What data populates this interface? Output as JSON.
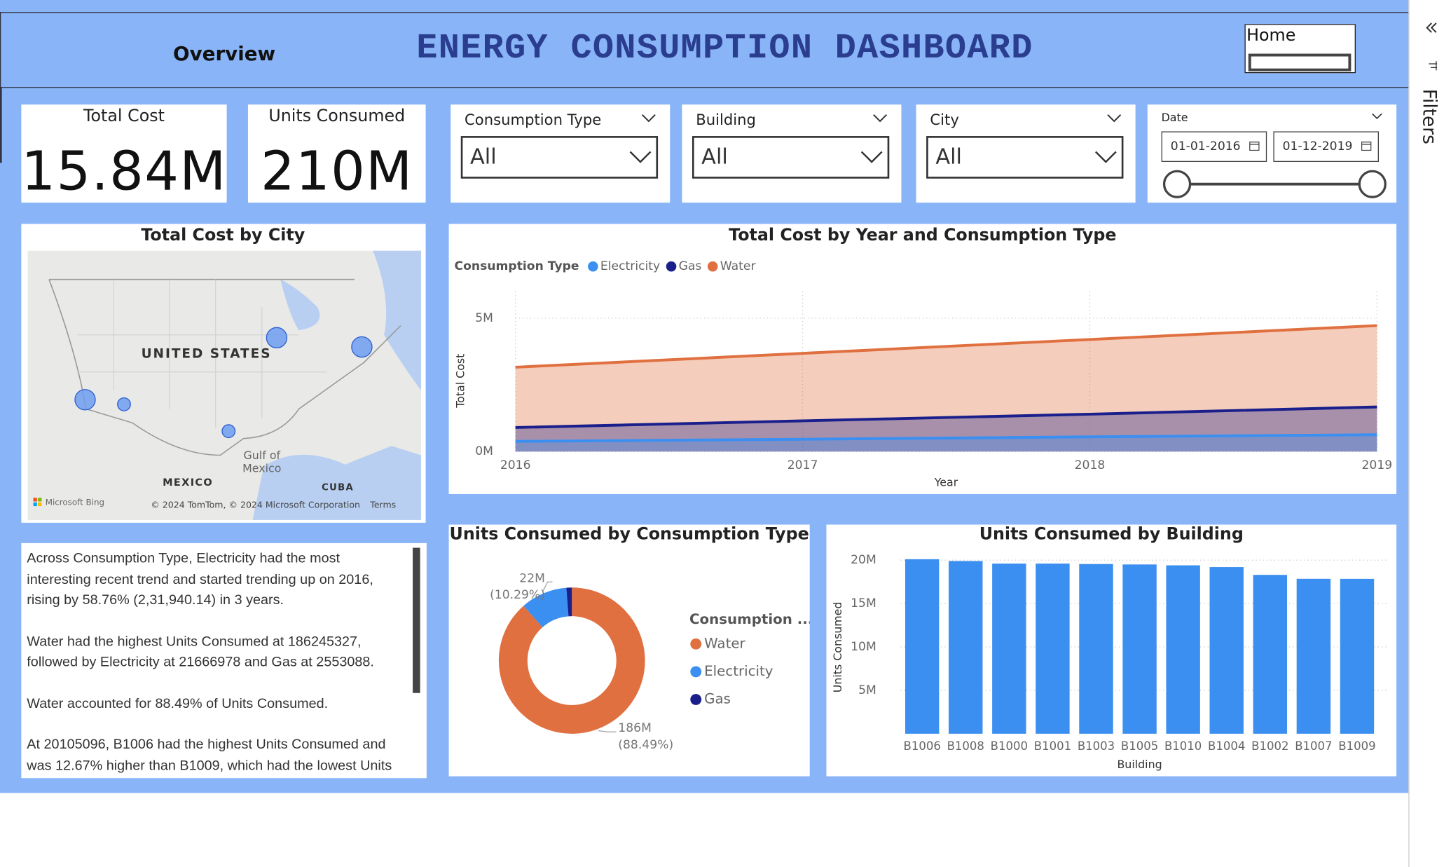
{
  "header": {
    "nav": "Overview",
    "title": "ENERGY CONSUMPTION DASHBOARD",
    "button": "Home"
  },
  "kpis": [
    {
      "label": "Total Cost",
      "value": "15.84M"
    },
    {
      "label": "Units Consumed",
      "value": "210M"
    }
  ],
  "slicers": [
    {
      "label": "Consumption Type",
      "value": "All"
    },
    {
      "label": "Building",
      "value": "All"
    },
    {
      "label": "City",
      "value": "All"
    }
  ],
  "date_slicer": {
    "label": "Date",
    "start": "01-01-2016",
    "end": "01-12-2019"
  },
  "filters_pane": {
    "label": "Filters"
  },
  "map": {
    "title": "Total Cost by City",
    "labels": [
      "UNITED STATES",
      "Gulf of Mexico",
      "MEXICO",
      "CUBA"
    ],
    "brand": "Microsoft Bing",
    "attribution": "© 2024 TomTom, © 2024 Microsoft Corporation",
    "terms": "Terms"
  },
  "narrative": [
    "Across Consumption Type, Electricity had the most interesting recent trend and started trending up on 2016, rising by 58.76% (2,31,940.14) in 3 years.",
    "Water had the highest Units Consumed at 186245327, followed by Electricity at 21666978 and Gas at 2553088.",
    "Water accounted for 88.49% of Units Consumed.",
    "At 20105096, B1006 had the highest Units Consumed and was 12.67% higher than B1009, which had the lowest Units"
  ],
  "chart_data": [
    {
      "type": "area",
      "title": "Total Cost by Year and Consumption Type",
      "legend_title": "Consumption Type",
      "x": [
        2016,
        2017,
        2018,
        2019
      ],
      "xticks": [
        2016,
        2017,
        2018,
        2019
      ],
      "xlim": [
        2016,
        2019
      ],
      "xlabel": "Year",
      "ylabel": "Total Cost",
      "ylim": [
        0,
        6000000
      ],
      "yticks": [
        {
          "value": 0,
          "label": "0M"
        },
        {
          "value": 5000000,
          "label": "5M"
        }
      ],
      "grid": true,
      "series": [
        {
          "name": "Electricity",
          "color": "#3b8ff0",
          "values": [
            380000,
            460000,
            550000,
            630000
          ]
        },
        {
          "name": "Gas",
          "color": "#1a1f8c",
          "values": [
            900000,
            1150000,
            1400000,
            1670000
          ]
        },
        {
          "name": "Water",
          "color": "#e07040",
          "values": [
            3160000,
            3680000,
            4200000,
            4720000
          ]
        }
      ]
    },
    {
      "type": "donut",
      "title": "Units Consumed by Consumption Type",
      "legend_title": "Consumption ...",
      "categories": [
        "Water",
        "Electricity",
        "Gas"
      ],
      "colors": [
        "#e07040",
        "#3b8ff0",
        "#1a1f8c"
      ],
      "values": [
        186245327,
        21666978,
        2553088
      ],
      "value_labels": [
        "186M (88.49%)",
        "22M (10.29%)",
        null
      ]
    },
    {
      "type": "bar",
      "title": "Units Consumed by Building",
      "xlabel": "Building",
      "ylabel": "Units Consumed",
      "color": "#3b8ff0",
      "categories": [
        "B1006",
        "B1008",
        "B1000",
        "B1001",
        "B1003",
        "B1005",
        "B1010",
        "B1004",
        "B1002",
        "B1007",
        "B1009"
      ],
      "values": [
        20105096,
        19900000,
        19600000,
        19600000,
        19550000,
        19500000,
        19400000,
        19200000,
        18300000,
        17850000,
        17844000
      ],
      "ylim": [
        0,
        21000000
      ],
      "grid": true,
      "yticks": [
        {
          "value": 5000000,
          "label": "5M"
        },
        {
          "value": 10000000,
          "label": "10M"
        },
        {
          "value": 15000000,
          "label": "15M"
        },
        {
          "value": 20000000,
          "label": "20M"
        }
      ]
    }
  ]
}
